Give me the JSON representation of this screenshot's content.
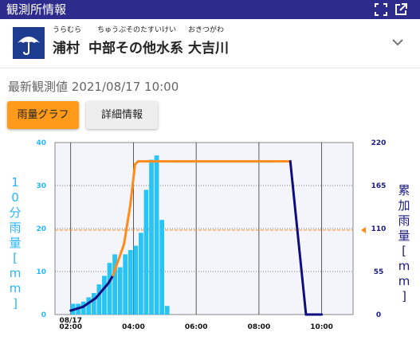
{
  "header": {
    "title": "観測所情報",
    "icons": [
      "fullscreen-icon",
      "open-external-icon"
    ]
  },
  "station": {
    "ruby_city": "うらむら",
    "ruby_basin": "ちゅうぶそのたすいけい",
    "ruby_river": "おきつがわ",
    "city": "浦村",
    "basin": "中部その他水系",
    "river": "大吉川"
  },
  "latest": {
    "label": "最新観測値",
    "datetime": "2021/08/17 10:00"
  },
  "tabs": {
    "rain_graph": "雨量グラフ",
    "detail": "詳細情報"
  },
  "chart_data": {
    "type": "bar+line",
    "left_axis": {
      "label": "10分雨量[mm]",
      "ticks": [
        "0",
        "10",
        "20",
        "30",
        "40"
      ],
      "range": [
        0,
        40
      ],
      "color": "#29b6f6"
    },
    "right_axis": {
      "label": "累加雨量[mm]",
      "ticks": [
        "0",
        "55",
        "110",
        "165",
        "220"
      ],
      "range": [
        0,
        220
      ],
      "color": "#1a1a80"
    },
    "x_ticks": [
      "02:00",
      "04:00",
      "06:00",
      "08:00",
      "10:00"
    ],
    "x_date": "08/17",
    "threshold_right": 108,
    "threshold_color": "#ff8c1a",
    "bars_start_hour": 2.0,
    "bar_interval_hour": 0.1667,
    "bars": [
      2.5,
      2.5,
      3,
      4,
      5,
      7,
      9,
      12,
      14,
      11,
      14,
      15,
      16,
      19,
      29,
      36,
      37,
      22,
      2
    ],
    "cumulative": [
      [
        2.0,
        5
      ],
      [
        2.4,
        10
      ],
      [
        2.8,
        21
      ],
      [
        3.2,
        40
      ],
      [
        3.35,
        50
      ],
      [
        3.7,
        90
      ],
      [
        3.9,
        140
      ],
      [
        4.05,
        192
      ],
      [
        4.15,
        196
      ],
      [
        9.0,
        196
      ],
      [
        9.5,
        0
      ],
      [
        10.0,
        0
      ]
    ]
  }
}
